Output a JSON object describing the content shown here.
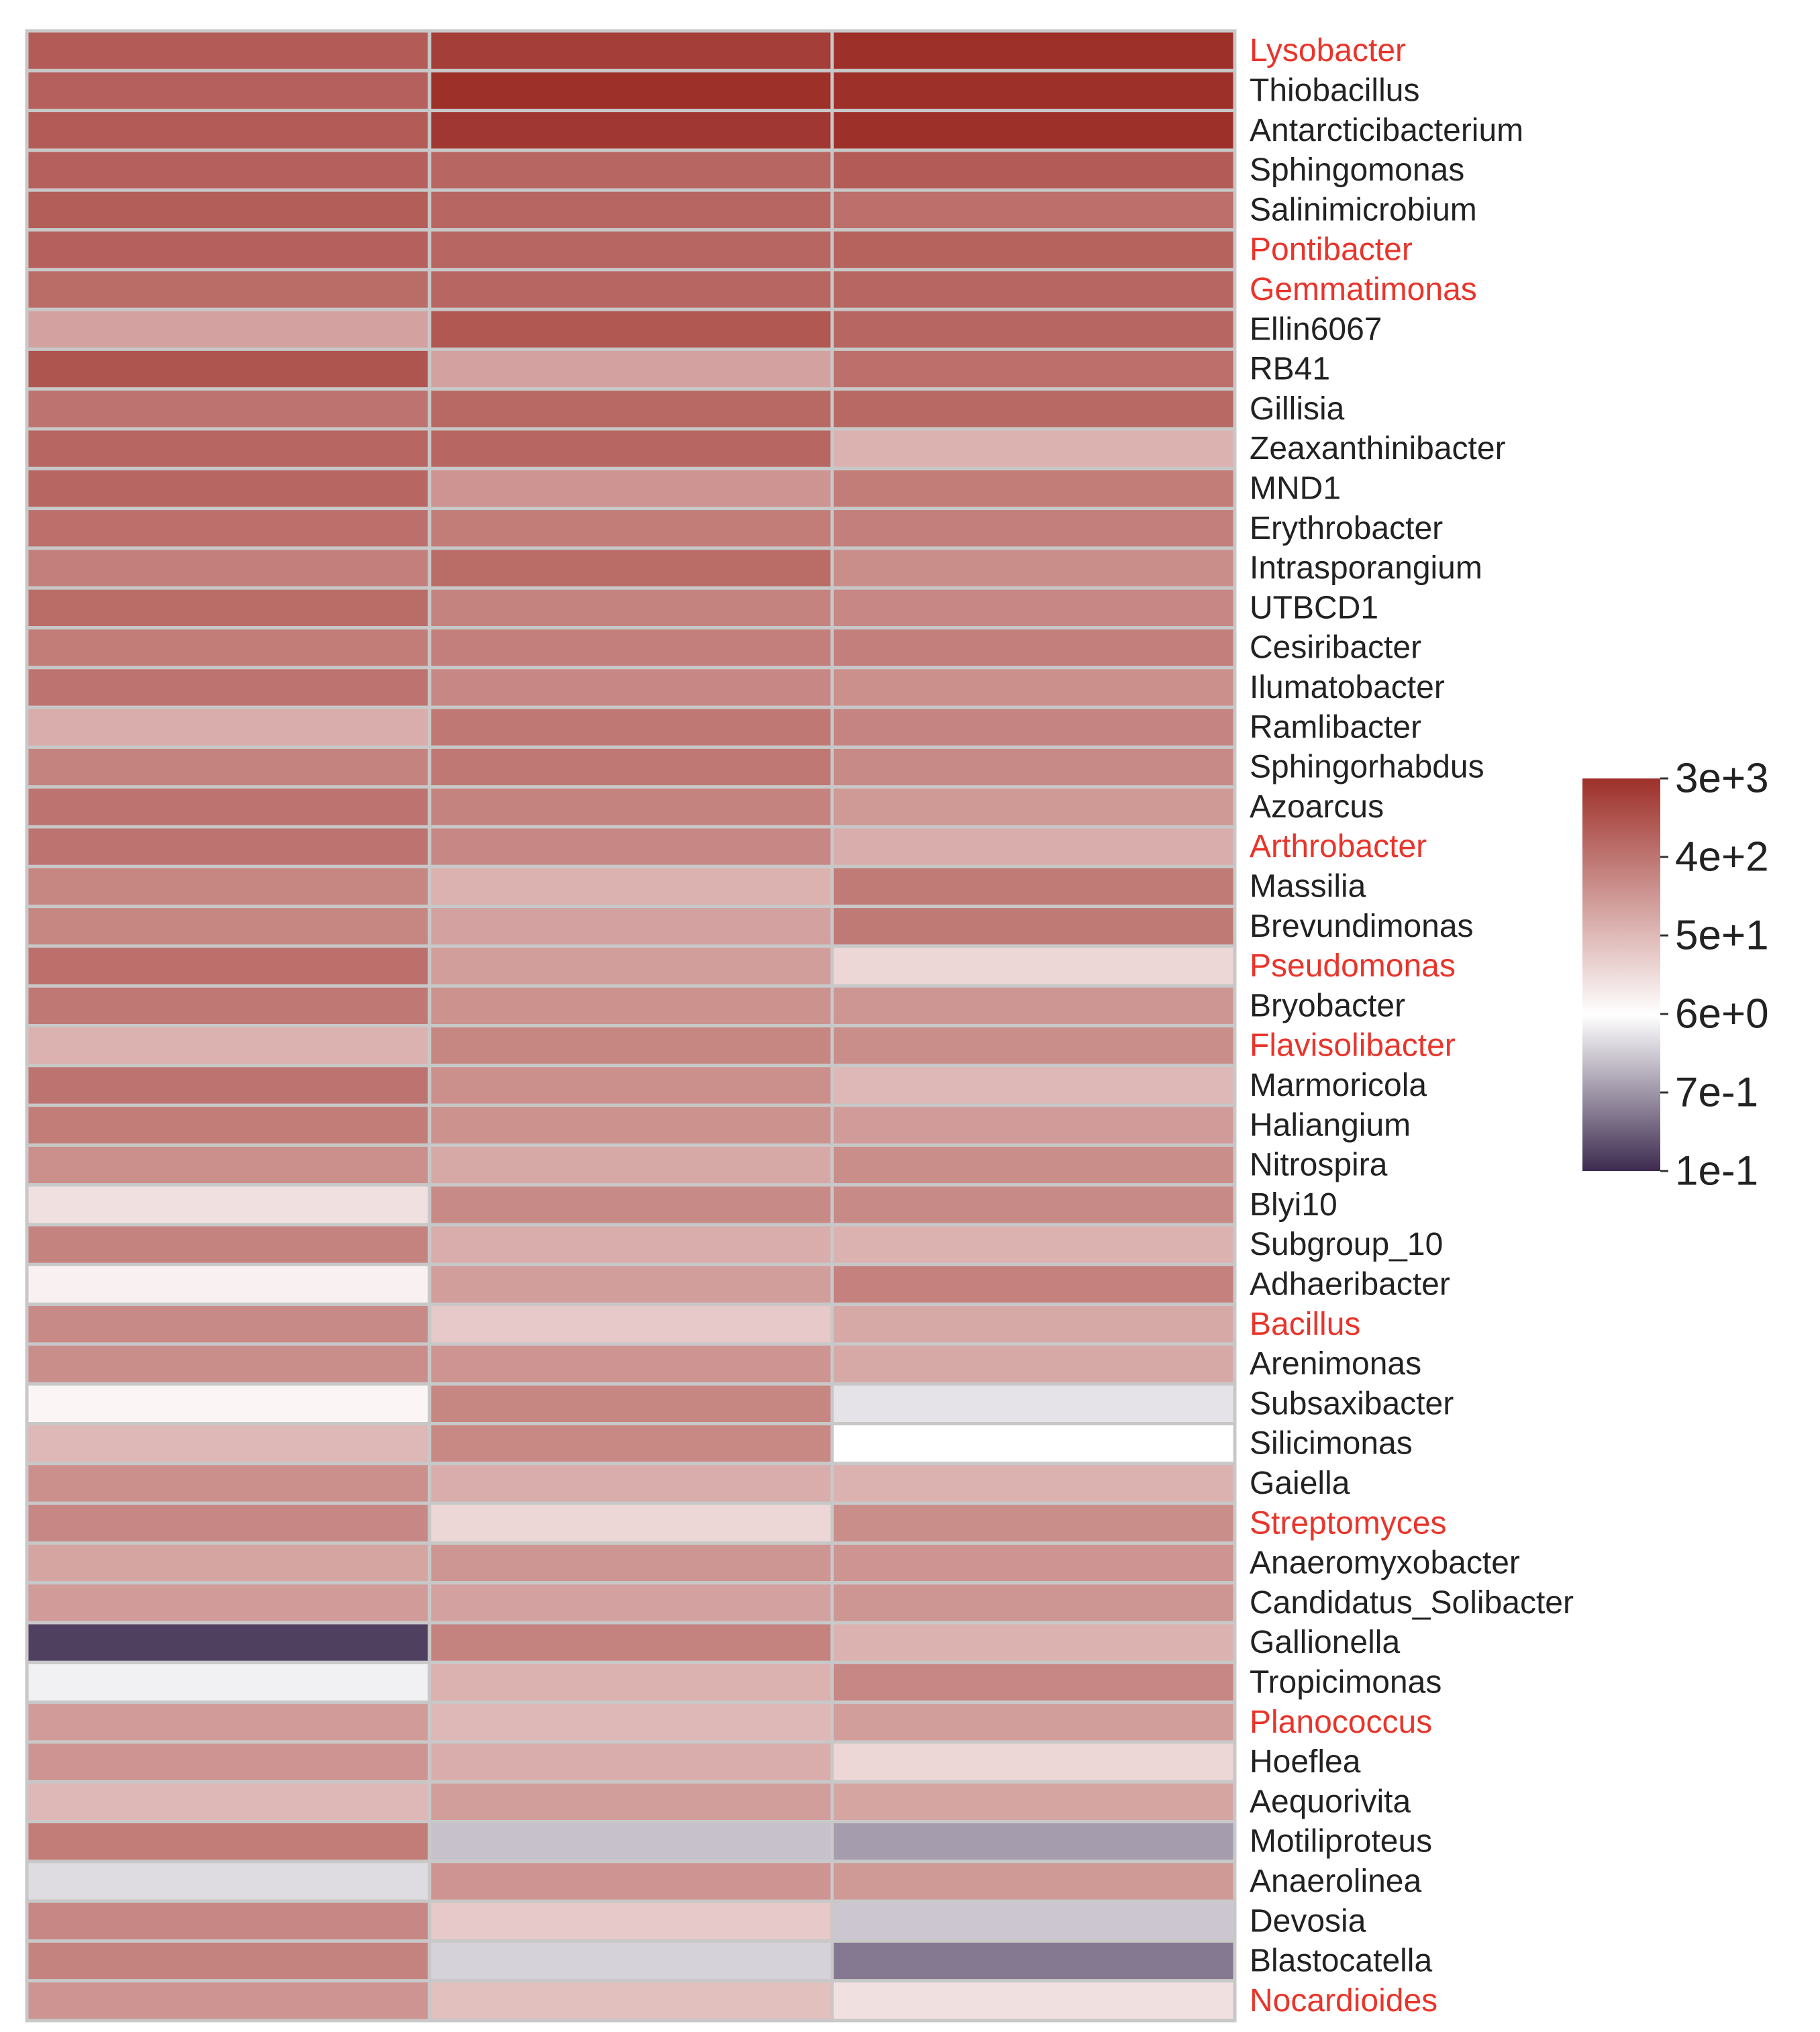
{
  "chart_data": {
    "type": "heatmap",
    "title": "",
    "columns": [
      "",
      "",
      ""
    ],
    "rows": [
      {
        "label": "Lysobacter",
        "highlight": true,
        "values": [
          800,
          2000,
          3000
        ]
      },
      {
        "label": "Thiobacillus",
        "highlight": false,
        "values": [
          700,
          3000,
          3000
        ]
      },
      {
        "label": "Antarcticibacterium",
        "highlight": false,
        "values": [
          800,
          2400,
          3000
        ]
      },
      {
        "label": "Sphingomonas",
        "highlight": false,
        "values": [
          700,
          600,
          800
        ]
      },
      {
        "label": "Salinimicrobium",
        "highlight": false,
        "values": [
          750,
          600,
          450
        ]
      },
      {
        "label": "Pontibacter",
        "highlight": true,
        "values": [
          700,
          600,
          650
        ]
      },
      {
        "label": "Gemmatimonas",
        "highlight": true,
        "values": [
          500,
          600,
          600
        ]
      },
      {
        "label": "Ellin6067",
        "highlight": false,
        "values": [
          100,
          900,
          600
        ]
      },
      {
        "label": "RB41",
        "highlight": false,
        "values": [
          1000,
          100,
          450
        ]
      },
      {
        "label": "Gillisia",
        "highlight": false,
        "values": [
          400,
          550,
          550
        ]
      },
      {
        "label": "Zeaxanthinibacter",
        "highlight": false,
        "values": [
          600,
          600,
          60
        ]
      },
      {
        "label": "MND1",
        "highlight": false,
        "values": [
          600,
          150,
          300
        ]
      },
      {
        "label": "Erythrobacter",
        "highlight": false,
        "values": [
          450,
          300,
          280
        ]
      },
      {
        "label": "Intrasporangium",
        "highlight": false,
        "values": [
          280,
          500,
          180
        ]
      },
      {
        "label": "UTBCD1",
        "highlight": false,
        "values": [
          500,
          250,
          220
        ]
      },
      {
        "label": "Cesiribacter",
        "highlight": false,
        "values": [
          300,
          280,
          280
        ]
      },
      {
        "label": "Ilumatobacter",
        "highlight": false,
        "values": [
          400,
          220,
          170
        ]
      },
      {
        "label": "Ramlibacter",
        "highlight": false,
        "values": [
          70,
          350,
          240
        ]
      },
      {
        "label": "Sphingorhabdus",
        "highlight": false,
        "values": [
          250,
          350,
          200
        ]
      },
      {
        "label": "Azoarcus",
        "highlight": false,
        "values": [
          400,
          250,
          130
        ]
      },
      {
        "label": "Arthrobacter",
        "highlight": true,
        "values": [
          400,
          220,
          70
        ]
      },
      {
        "label": "Massilia",
        "highlight": false,
        "values": [
          230,
          60,
          320
        ]
      },
      {
        "label": "Brevundimonas",
        "highlight": false,
        "values": [
          230,
          100,
          330
        ]
      },
      {
        "label": "Pseudomonas",
        "highlight": true,
        "values": [
          450,
          110,
          20
        ]
      },
      {
        "label": "Bryobacter",
        "highlight": false,
        "values": [
          350,
          160,
          140
        ]
      },
      {
        "label": "Flavisolibacter",
        "highlight": true,
        "values": [
          60,
          230,
          180
        ]
      },
      {
        "label": "Marmoricola",
        "highlight": false,
        "values": [
          400,
          170,
          50
        ]
      },
      {
        "label": "Haliangium",
        "highlight": false,
        "values": [
          300,
          160,
          120
        ]
      },
      {
        "label": "Nitrospira",
        "highlight": false,
        "values": [
          170,
          80,
          180
        ]
      },
      {
        "label": "Blyi10",
        "highlight": false,
        "values": [
          15,
          200,
          200
        ]
      },
      {
        "label": "Subgroup_10",
        "highlight": false,
        "values": [
          250,
          70,
          60
        ]
      },
      {
        "label": "Adhaeribacter",
        "highlight": false,
        "values": [
          9,
          110,
          260
        ]
      },
      {
        "label": "Bacillus",
        "highlight": true,
        "values": [
          200,
          30,
          80
        ]
      },
      {
        "label": "Arenimonas",
        "highlight": false,
        "values": [
          180,
          150,
          80
        ]
      },
      {
        "label": "Subsaxibacter",
        "highlight": false,
        "values": [
          8,
          230,
          3.5
        ]
      },
      {
        "label": "Silicimonas",
        "highlight": false,
        "values": [
          50,
          210,
          6
        ]
      },
      {
        "label": "Gaiella",
        "highlight": false,
        "values": [
          170,
          70,
          60
        ]
      },
      {
        "label": "Streptomyces",
        "highlight": true,
        "values": [
          220,
          20,
          180
        ]
      },
      {
        "label": "Anaeromyxobacter",
        "highlight": false,
        "values": [
          90,
          140,
          150
        ]
      },
      {
        "label": "Candidatus_Solibacter",
        "highlight": false,
        "values": [
          120,
          100,
          140
        ]
      },
      {
        "label": "Gallionella",
        "highlight": false,
        "values": [
          0.15,
          250,
          60
        ]
      },
      {
        "label": "Tropicimonas",
        "highlight": false,
        "values": [
          4.5,
          60,
          220
        ]
      },
      {
        "label": "Planococcus",
        "highlight": true,
        "values": [
          120,
          50,
          110
        ]
      },
      {
        "label": "Hoeflea",
        "highlight": false,
        "values": [
          150,
          70,
          20
        ]
      },
      {
        "label": "Aequorivita",
        "highlight": false,
        "values": [
          50,
          110,
          90
        ]
      },
      {
        "label": "Motiliproteus",
        "highlight": false,
        "values": [
          300,
          1.8,
          0.9
        ]
      },
      {
        "label": "Anaerolinea",
        "highlight": false,
        "values": [
          3,
          150,
          130
        ]
      },
      {
        "label": "Devosia",
        "highlight": false,
        "values": [
          220,
          30,
          2
        ]
      },
      {
        "label": "Blastocatella",
        "highlight": false,
        "values": [
          250,
          2.5,
          0.45
        ]
      },
      {
        "label": "Nocardioides",
        "highlight": true,
        "values": [
          150,
          40,
          15
        ]
      }
    ],
    "color_scale": {
      "type": "log",
      "min": 0.1,
      "max": 3000,
      "stops": [
        {
          "value": 0.1,
          "color": "#3d2b4f"
        },
        {
          "value": 6,
          "color": "#ffffff"
        },
        {
          "value": 3000,
          "color": "#9e302a"
        }
      ],
      "legend": {
        "ticks": [
          {
            "value": 3000,
            "label": "3e+3"
          },
          {
            "value": 400,
            "label": "4e+2"
          },
          {
            "value": 50,
            "label": "5e+1"
          },
          {
            "value": 6,
            "label": "6e+0"
          },
          {
            "value": 0.7,
            "label": "7e-1"
          },
          {
            "value": 0.1,
            "label": "1e-1"
          }
        ],
        "placement": "right"
      }
    },
    "label_colors": {
      "highlight": "#e8352b",
      "normal": "#222222"
    },
    "cell_border_color": "#c8c8c8",
    "grid": false
  }
}
